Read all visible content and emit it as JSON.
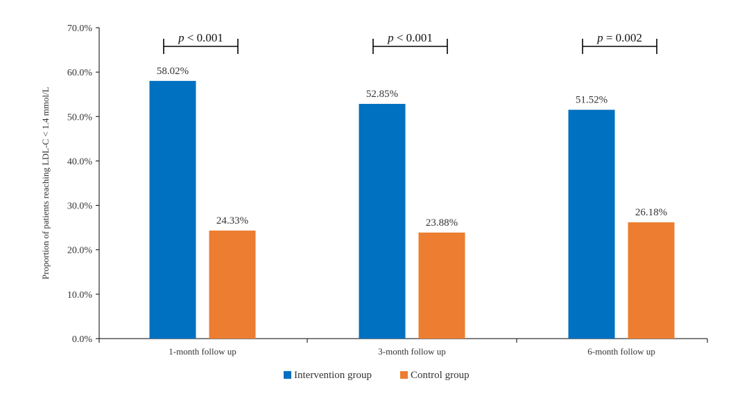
{
  "chart_data": {
    "type": "bar",
    "title": "",
    "xlabel": "",
    "ylabel": "Proportion of patients reaching LDL-C < 1.4 mmol/L",
    "ylim": [
      0,
      70
    ],
    "y_ticks": [
      0,
      10,
      20,
      30,
      40,
      50,
      60,
      70
    ],
    "y_tick_labels": [
      "0.0%",
      "10.0%",
      "20.0%",
      "30.0%",
      "40.0%",
      "50.0%",
      "60.0%",
      "70.0%"
    ],
    "categories": [
      "1-month follow up",
      "3-month follow up",
      "6-month follow up"
    ],
    "series": [
      {
        "name": "Intervention group",
        "color": "#0070C0",
        "values": [
          58.02,
          52.85,
          51.52
        ],
        "labels": [
          "58.02%",
          "52.85%",
          "51.52%"
        ]
      },
      {
        "name": "Control group",
        "color": "#ED7D31",
        "values": [
          24.33,
          23.88,
          26.18
        ],
        "labels": [
          "24.33%",
          "23.88%",
          "26.18%"
        ]
      }
    ],
    "annotations": [
      {
        "category": "1-month follow up",
        "p_symbol": "p",
        "p_rest": " < 0.001"
      },
      {
        "category": "3-month follow up",
        "p_symbol": "p",
        "p_rest": " < 0.001"
      },
      {
        "category": "6-month follow up",
        "p_symbol": "p",
        "p_rest": " = 0.002"
      }
    ],
    "legend_position": "bottom-center",
    "grid": false
  }
}
